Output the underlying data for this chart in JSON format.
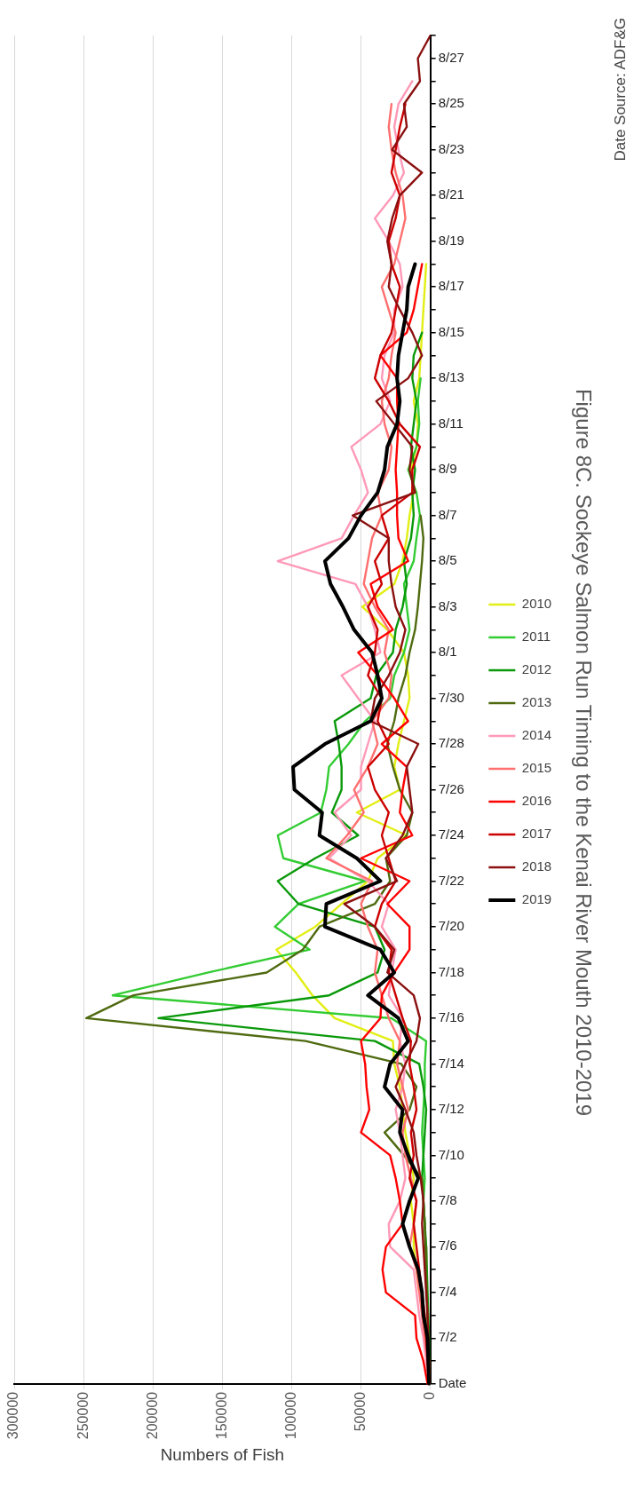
{
  "chart_data": {
    "type": "line",
    "orientation": "horizontal",
    "title": "Figure 8C. Sockeye Salmon Run Timing to the Kenai River Mouth 2010-2019",
    "xlabel": "Numbers of Fish",
    "categories": [
      null,
      "8/27",
      null,
      "8/25",
      null,
      "8/23",
      null,
      "8/21",
      null,
      "8/19",
      null,
      "8/17",
      null,
      "8/15",
      null,
      "8/13",
      null,
      "8/11",
      null,
      "8/9",
      null,
      "8/7",
      null,
      "8/5",
      null,
      "8/3",
      null,
      "8/1",
      null,
      "7/30",
      null,
      "7/28",
      null,
      "7/26",
      null,
      "7/24",
      null,
      "7/22",
      null,
      "7/20",
      null,
      "7/18",
      null,
      "7/16",
      null,
      "7/14",
      null,
      "7/12",
      null,
      "7/10",
      null,
      "7/8",
      null,
      "7/6",
      null,
      "7/4",
      null,
      "7/2",
      null,
      "Date"
    ],
    "series": [
      {
        "name": "2010",
        "color": "#e2ee14",
        "values": [
          null,
          null,
          null,
          null,
          null,
          null,
          null,
          null,
          null,
          null,
          3000,
          4000,
          5000,
          6000,
          7000,
          8000,
          12000,
          9000,
          10000,
          14000,
          12000,
          15000,
          17000,
          20000,
          26000,
          49000,
          31000,
          19000,
          16000,
          15000,
          19000,
          23000,
          26000,
          22000,
          53000,
          17000,
          38000,
          45000,
          64000,
          83000,
          111000,
          97000,
          85000,
          69000,
          27000,
          26000,
          22000,
          20000,
          18000,
          15000,
          12000,
          14000,
          12000,
          12000,
          10000,
          8000,
          null,
          null,
          null,
          null
        ]
      },
      {
        "name": "2011",
        "color": "#33cc33",
        "values": [
          null,
          null,
          null,
          null,
          null,
          null,
          null,
          null,
          null,
          null,
          null,
          null,
          null,
          null,
          null,
          7000,
          9000,
          8000,
          10000,
          16000,
          10000,
          7500,
          10000,
          12000,
          19000,
          17000,
          15000,
          19000,
          26000,
          29000,
          47000,
          59000,
          73000,
          75000,
          79000,
          110000,
          106000,
          47000,
          95000,
          112000,
          87000,
          160000,
          229000,
          28000,
          3000,
          4000,
          4000,
          5000,
          6000,
          5000,
          4000,
          5000,
          4000,
          3500,
          3000,
          2500,
          2000,
          1500,
          1000,
          500
        ]
      },
      {
        "name": "2012",
        "color": "#0a990a",
        "values": [
          null,
          null,
          null,
          null,
          null,
          null,
          null,
          null,
          null,
          null,
          null,
          null,
          null,
          6000,
          12000,
          13000,
          10000,
          12000,
          14000,
          11000,
          13000,
          12000,
          14000,
          19000,
          17000,
          20000,
          25000,
          27000,
          39000,
          43000,
          69000,
          66000,
          64000,
          64000,
          71000,
          52000,
          83000,
          110000,
          95000,
          40000,
          33000,
          38000,
          73000,
          196000,
          40000,
          8000,
          5000,
          3000,
          4000,
          5000,
          6000,
          5000,
          4000,
          3000,
          2500,
          2000,
          1500,
          1000,
          1000,
          500
        ]
      },
      {
        "name": "2013",
        "color": "#4f6a10",
        "values": [
          null,
          null,
          null,
          null,
          null,
          null,
          null,
          null,
          null,
          null,
          null,
          null,
          null,
          null,
          null,
          null,
          null,
          null,
          null,
          null,
          null,
          7000,
          5000,
          6000,
          7500,
          9000,
          11000,
          15000,
          18000,
          23000,
          26000,
          31000,
          27000,
          22000,
          13000,
          17000,
          32000,
          29000,
          40000,
          80000,
          92000,
          118000,
          214000,
          248000,
          90000,
          21000,
          10000,
          15000,
          33000,
          19000,
          6000,
          5000,
          4000,
          3500,
          3000,
          2500,
          2000,
          1500,
          1000,
          500
        ]
      },
      {
        "name": "2014",
        "color": "#ff99b8",
        "values": [
          null,
          null,
          13000,
          23000,
          26000,
          23000,
          19000,
          27000,
          40000,
          30000,
          22000,
          20000,
          26000,
          26000,
          33000,
          35000,
          29000,
          36000,
          57000,
          50000,
          45000,
          55000,
          64000,
          110000,
          54000,
          45000,
          40000,
          36000,
          64000,
          52000,
          40000,
          45000,
          50000,
          50000,
          69000,
          57000,
          73000,
          45000,
          30000,
          35000,
          25000,
          28000,
          30000,
          20000,
          22000,
          18000,
          20000,
          25000,
          22000,
          20000,
          18000,
          22000,
          30000,
          29000,
          12000,
          10000,
          8000,
          5000,
          3000,
          1000
        ]
      },
      {
        "name": "2015",
        "color": "#ff6f6f",
        "values": [
          null,
          null,
          null,
          28000,
          30000,
          28000,
          25000,
          20000,
          18000,
          22000,
          26000,
          35000,
          30000,
          25000,
          28000,
          30000,
          35000,
          33000,
          28000,
          30000,
          38000,
          35000,
          42000,
          45000,
          48000,
          40000,
          30000,
          33000,
          28000,
          30000,
          42000,
          38000,
          45000,
          55000,
          48000,
          60000,
          75000,
          42000,
          50000,
          45000,
          38000,
          40000,
          35000,
          30000,
          22000,
          24000,
          20000,
          16000,
          20000,
          18000,
          14000,
          10000,
          12000,
          15000,
          10000,
          8000,
          6000,
          4000,
          2000,
          1000
        ]
      },
      {
        "name": "2016",
        "color": "#ff0000",
        "values": [
          null,
          null,
          null,
          null,
          null,
          null,
          null,
          null,
          null,
          null,
          6000,
          9000,
          12000,
          17000,
          36000,
          24000,
          24000,
          23000,
          24000,
          25000,
          24000,
          24000,
          23000,
          16000,
          43000,
          38000,
          27000,
          52000,
          38000,
          26000,
          16000,
          35000,
          17000,
          20000,
          22000,
          13000,
          50000,
          15000,
          31000,
          15000,
          15000,
          26000,
          35000,
          36000,
          50000,
          47000,
          46000,
          44000,
          50000,
          29000,
          25000,
          22000,
          20000,
          32000,
          34500,
          32000,
          11000,
          10000,
          5000,
          2000
        ]
      },
      {
        "name": "2017",
        "color": "#cc0000",
        "values": [
          null,
          null,
          null,
          18000,
          22000,
          25000,
          28000,
          22000,
          25000,
          30000,
          28000,
          22000,
          25000,
          28000,
          36000,
          40000,
          30000,
          22000,
          7500,
          13000,
          13000,
          35000,
          30000,
          40000,
          35000,
          45000,
          38000,
          40000,
          45000,
          35000,
          38000,
          30000,
          45000,
          40000,
          30000,
          35000,
          30000,
          25000,
          35000,
          40000,
          28000,
          30000,
          25000,
          20000,
          14000,
          15000,
          12000,
          10000,
          14000,
          12000,
          15000,
          10000,
          12000,
          10000,
          8000,
          6000,
          4000,
          3000,
          2000,
          1000
        ]
      },
      {
        "name": "2018",
        "color": "#8b1010",
        "values": [
          0,
          9000,
          7500,
          19000,
          17000,
          27500,
          6000,
          22000,
          27500,
          31000,
          28000,
          30000,
          22000,
          13000,
          6000,
          16000,
          39000,
          26000,
          13000,
          15000,
          11000,
          56000,
          30000,
          30000,
          28000,
          25000,
          18000,
          22000,
          30000,
          40000,
          43000,
          8700,
          17000,
          15000,
          13000,
          20000,
          32000,
          24000,
          62000,
          40000,
          26000,
          31000,
          12000,
          7500,
          10000,
          18000,
          25000,
          18000,
          12000,
          10000,
          7000,
          5000,
          6000,
          5000,
          4000,
          3000,
          2000,
          1500,
          1000,
          500
        ]
      },
      {
        "name": "2019",
        "color": "#000000",
        "values": [
          null,
          null,
          null,
          null,
          null,
          null,
          null,
          null,
          null,
          null,
          11000,
          16000,
          17000,
          20000,
          23000,
          24000,
          22000,
          24000,
          31000,
          33000,
          38000,
          50000,
          59000,
          76000,
          72000,
          63000,
          55000,
          42000,
          38000,
          35000,
          43000,
          76000,
          99000,
          98000,
          78000,
          80000,
          53000,
          36000,
          75000,
          76000,
          36000,
          26000,
          45000,
          23000,
          16000,
          29000,
          33000,
          20000,
          22000,
          16000,
          8700,
          15000,
          20000,
          15000,
          8700,
          6000,
          5000,
          2000,
          1500,
          1000
        ]
      }
    ],
    "xlim": [
      300000,
      0
    ],
    "xticks": [
      300000,
      250000,
      200000,
      150000,
      100000,
      50000,
      0
    ],
    "grid": "x",
    "legend": "right",
    "line_style": "solid",
    "annotations": [
      "Date Source: ADF&G"
    ]
  }
}
